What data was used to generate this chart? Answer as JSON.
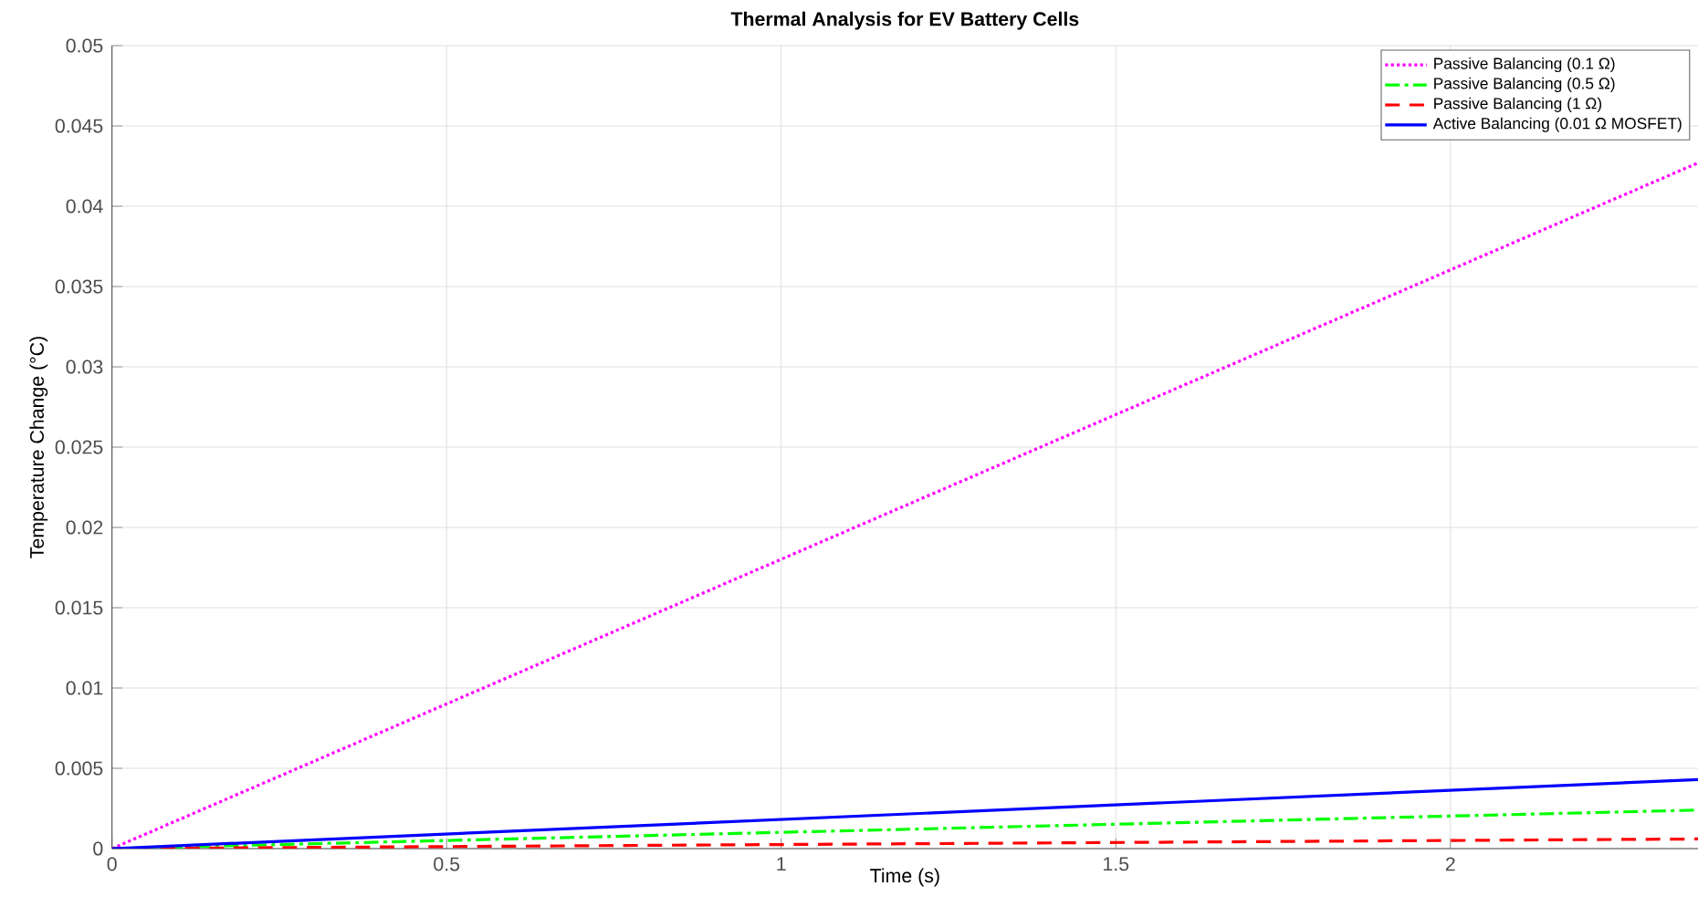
{
  "chart_data": {
    "type": "line",
    "title": "Thermal Analysis for EV Battery Cells",
    "xlabel": "Time (s)",
    "ylabel": "Temperature Change (°C)",
    "x": [
      0,
      2.37
    ],
    "series": [
      {
        "name": "Passive Balancing (0.1 Ω)",
        "color": "#ff00ff",
        "line_style": "dotted",
        "values": [
          0,
          0.0427
        ]
      },
      {
        "name": "Passive Balancing (0.5 Ω)",
        "color": "#00ff00",
        "line_style": "dashdot",
        "values": [
          0,
          0.0024
        ]
      },
      {
        "name": "Passive Balancing (1 Ω)",
        "color": "#ff0000",
        "line_style": "dashed",
        "values": [
          0,
          0.0006
        ]
      },
      {
        "name": "Active Balancing (0.01 Ω MOSFET)",
        "color": "#0000ff",
        "line_style": "solid",
        "values": [
          0,
          0.0043
        ]
      }
    ],
    "xlim": [
      0,
      2.37
    ],
    "ylim": [
      0,
      0.05
    ],
    "xticks": [
      0,
      0.5,
      1,
      1.5,
      2
    ],
    "yticks": [
      0,
      0.005,
      0.01,
      0.015,
      0.02,
      0.025,
      0.03,
      0.035,
      0.04,
      0.045,
      0.05
    ],
    "grid": true,
    "legend": "top right",
    "marker": "none"
  }
}
